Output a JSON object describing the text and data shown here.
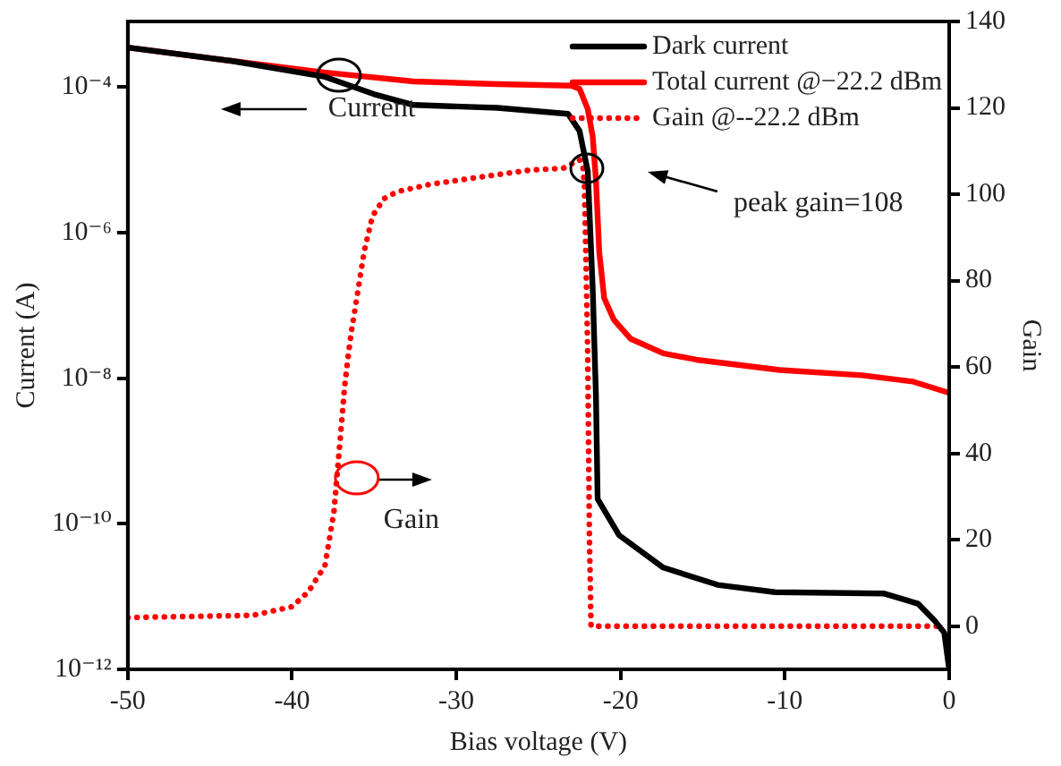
{
  "chart_data": {
    "type": "line",
    "xlabel": "Bias voltage (V)",
    "ylabel": "Current (A)",
    "y2label": "Gain",
    "xlim": [
      -50,
      0
    ],
    "xticks": [
      -50,
      -40,
      -30,
      -20,
      -10,
      0
    ],
    "log": "y",
    "ylim": [
      1e-12,
      0.0008
    ],
    "yticks": [
      {
        "value": 1e-12,
        "label": "10⁻¹²"
      },
      {
        "value": 1e-10,
        "label": "10⁻¹⁰"
      },
      {
        "value": 1e-08,
        "label": "10⁻⁸"
      },
      {
        "value": 1e-06,
        "label": "10⁻⁶"
      },
      {
        "value": 0.0001,
        "label": "10⁻⁴"
      }
    ],
    "y2lim": [
      -10,
      140
    ],
    "y2ticks": [
      0,
      20,
      40,
      60,
      80,
      100,
      120,
      140
    ],
    "grid": false,
    "legend": "top right",
    "marker": "none",
    "series": [
      {
        "name": "Dark current",
        "color": "#000000",
        "line_style": "solid",
        "x": [
          -50,
          -43.7,
          -38.06,
          -35,
          -32.6,
          -27.5,
          -23.2,
          -22.5,
          -22.0,
          -21.7,
          -21.5,
          -21.4,
          -20.1,
          -17.4,
          -14.1,
          -10.6,
          -3.95,
          -1.9,
          -0.9,
          -0.3,
          0
        ],
        "values": [
          0.00035,
          0.00023,
          0.00014,
          8e-05,
          5.7e-05,
          5.2e-05,
          4.3e-05,
          2.5e-05,
          7e-06,
          1.7e-07,
          5.6e-09,
          2.2e-10,
          7e-11,
          2.5e-11,
          1.45e-11,
          1.15e-11,
          1.1e-11,
          8e-12,
          4.7e-12,
          3.2e-12,
          1e-12
        ]
      },
      {
        "name": "Total current @−22.2 dBm",
        "color": "#ff0000",
        "line_style": "solid",
        "x": [
          -50,
          -43.7,
          -38.06,
          -32.6,
          -27.5,
          -23.0,
          -22.5,
          -22.0,
          -21.7,
          -21.5,
          -21.3,
          -21.0,
          -20.4,
          -19.4,
          -17.4,
          -15.4,
          -10.3,
          -5.3,
          -2.2,
          0
        ],
        "values": [
          0.00035,
          0.00023,
          0.00016,
          0.00012,
          0.00011,
          0.000105,
          9.5e-05,
          5e-05,
          2.1e-05,
          5.2e-06,
          5.4e-07,
          1.26e-07,
          6.3e-08,
          3.5e-08,
          2.2e-08,
          1.8e-08,
          1.3e-08,
          1.1e-08,
          9e-09,
          6.3e-09
        ]
      },
      {
        "name": "Gain @--22.2 dBm",
        "color": "#ff0000",
        "line_style": "dotted",
        "axis": "y2",
        "x": [
          -50,
          -42.4,
          -40,
          -39,
          -38,
          -37.45,
          -37.1,
          -36.8,
          -36.6,
          -36.4,
          -36.1,
          -35.6,
          -35.1,
          -34.4,
          -33.6,
          -31.6,
          -28.5,
          -25.5,
          -23.5,
          -22.9,
          -22.5,
          -22.3,
          -22.2,
          -22.1,
          -22.0,
          -21.9,
          -21.8,
          -0.5
        ],
        "values": [
          2,
          2.5,
          4.5,
          8,
          14,
          26.5,
          42,
          55.5,
          62,
          68,
          75,
          87,
          95,
          99,
          100.6,
          102.3,
          104,
          105.6,
          106,
          107.2,
          108,
          106.5,
          102,
          83,
          62.5,
          21,
          0,
          0
        ]
      }
    ],
    "annotations": [
      "Current",
      "peak gain=108",
      "Gain"
    ]
  }
}
